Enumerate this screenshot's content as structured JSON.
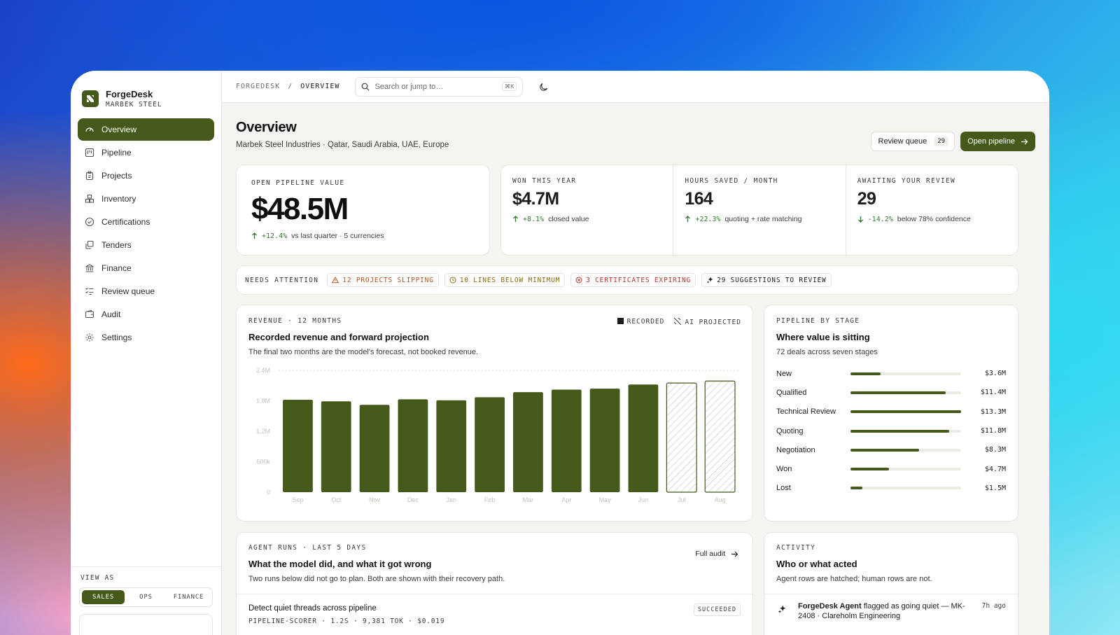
{
  "brand": {
    "name": "ForgeDesk",
    "sub": "MARBEK STEEL"
  },
  "sidebar": {
    "items": [
      {
        "label": "Overview",
        "icon": "gauge-icon",
        "active": true
      },
      {
        "label": "Pipeline",
        "icon": "kanban-icon"
      },
      {
        "label": "Projects",
        "icon": "clipboard-icon"
      },
      {
        "label": "Inventory",
        "icon": "boxes-icon"
      },
      {
        "label": "Certifications",
        "icon": "check-circle-icon"
      },
      {
        "label": "Tenders",
        "icon": "copy-icon"
      },
      {
        "label": "Finance",
        "icon": "bank-icon"
      },
      {
        "label": "Review queue",
        "icon": "list-check-icon"
      },
      {
        "label": "Audit",
        "icon": "wallet-icon"
      },
      {
        "label": "Settings",
        "icon": "gear-icon"
      }
    ],
    "view_as": {
      "label": "VIEW AS",
      "options": [
        "SALES",
        "OPS",
        "FINANCE"
      ],
      "selected": "SALES"
    }
  },
  "topbar": {
    "breadcrumb_root": "FORGEDESK",
    "breadcrumb_sep": "/",
    "breadcrumb_current": "OVERVIEW",
    "search_placeholder": "Search or jump to…",
    "search_shortcut": "⌘K"
  },
  "header": {
    "title": "Overview",
    "subtitle": "Marbek Steel Industries · Qatar, Saudi Arabia, UAE, Europe",
    "review_label": "Review queue",
    "review_count": "29",
    "open_pipeline_label": "Open pipeline"
  },
  "kpis": {
    "pipeline": {
      "label": "OPEN PIPELINE VALUE",
      "value": "$48.5M",
      "delta": "+12.4%",
      "note": "vs last quarter · 5 currencies"
    },
    "won": {
      "label": "WON THIS YEAR",
      "value": "$4.7M",
      "delta": "+8.1%",
      "note": "closed value"
    },
    "hours": {
      "label": "HOURS SAVED / MONTH",
      "value": "164",
      "delta": "+22.3%",
      "note": "quoting + rate matching"
    },
    "review": {
      "label": "AWAITING YOUR REVIEW",
      "value": "29",
      "delta": "-14.2%",
      "note": "below 78% confidence"
    }
  },
  "attention": {
    "label": "NEEDS ATTENTION",
    "chips": [
      {
        "text": "12 PROJECTS SLIPPING",
        "icon": "warning-icon"
      },
      {
        "text": "10 LINES BELOW MINIMUM",
        "icon": "clock-icon"
      },
      {
        "text": "3 CERTIFICATES EXPIRING",
        "icon": "x-circle-icon"
      },
      {
        "text": "29 SUGGESTIONS TO REVIEW",
        "icon": "sparkle-icon"
      }
    ]
  },
  "revenue": {
    "label": "REVENUE · 12 MONTHS",
    "title": "Recorded revenue and forward projection",
    "subtitle": "The final two months are the model's forecast, not booked revenue.",
    "legend_recorded": "RECORDED",
    "legend_projected": "AI PROJECTED"
  },
  "chart_data": {
    "type": "bar",
    "categories": [
      "Sep",
      "Oct",
      "Nov",
      "Dec",
      "Jan",
      "Feb",
      "Mar",
      "Apr",
      "May",
      "Jun",
      "Jul",
      "Aug"
    ],
    "series": [
      {
        "name": "RECORDED",
        "values": [
          1.82,
          1.79,
          1.72,
          1.83,
          1.81,
          1.87,
          1.97,
          2.02,
          2.04,
          2.12,
          null,
          null
        ]
      },
      {
        "name": "AI PROJECTED",
        "values": [
          null,
          null,
          null,
          null,
          null,
          null,
          null,
          null,
          null,
          null,
          2.15,
          2.19
        ]
      }
    ],
    "ytick_labels": [
      "0",
      "600k",
      "1.2M",
      "1.8M",
      "2.4M"
    ],
    "ylim": [
      0,
      2.4
    ],
    "grid": "top dashed line",
    "colors": {
      "recorded": "#45591a",
      "projected_outline": "#45591a"
    }
  },
  "stages": {
    "label": "PIPELINE BY STAGE",
    "title": "Where value is sitting",
    "subtitle": "72 deals across seven stages",
    "rows": [
      {
        "name": "New",
        "value": "$3.6M",
        "fill": 0.27
      },
      {
        "name": "Qualified",
        "value": "$11.4M",
        "fill": 0.86
      },
      {
        "name": "Technical Review",
        "value": "$13.3M",
        "fill": 1.0
      },
      {
        "name": "Quoting",
        "value": "$11.8M",
        "fill": 0.89
      },
      {
        "name": "Negotiation",
        "value": "$8.3M",
        "fill": 0.62
      },
      {
        "name": "Won",
        "value": "$4.7M",
        "fill": 0.35
      },
      {
        "name": "Lost",
        "value": "$1.5M",
        "fill": 0.11
      }
    ]
  },
  "agent_runs": {
    "label": "AGENT RUNS · LAST 5 DAYS",
    "title": "What the model did, and what it got wrong",
    "subtitle": "Two runs below did not go to plan. Both are shown with their recovery path.",
    "full_audit": "Full audit",
    "rows": [
      {
        "title": "Detect quiet threads across pipeline",
        "meta": "PIPELINE-SCORER · 1.2S · 9,381 TOK · $0.019",
        "status": "SUCCEEDED"
      }
    ]
  },
  "activity": {
    "label": "ACTIVITY",
    "title": "Who or what acted",
    "subtitle": "Agent rows are hatched; human rows are not.",
    "rows": [
      {
        "actor": "ForgeDesk Agent",
        "text": "flagged as going quiet — MK-",
        "text2": "2408 · Clareholm Engineering",
        "time": "7h ago"
      }
    ]
  },
  "colors": {
    "brand": "#45591a",
    "positive": "#2f7a2f",
    "warning": "#b5541c",
    "danger": "#b8382f"
  }
}
